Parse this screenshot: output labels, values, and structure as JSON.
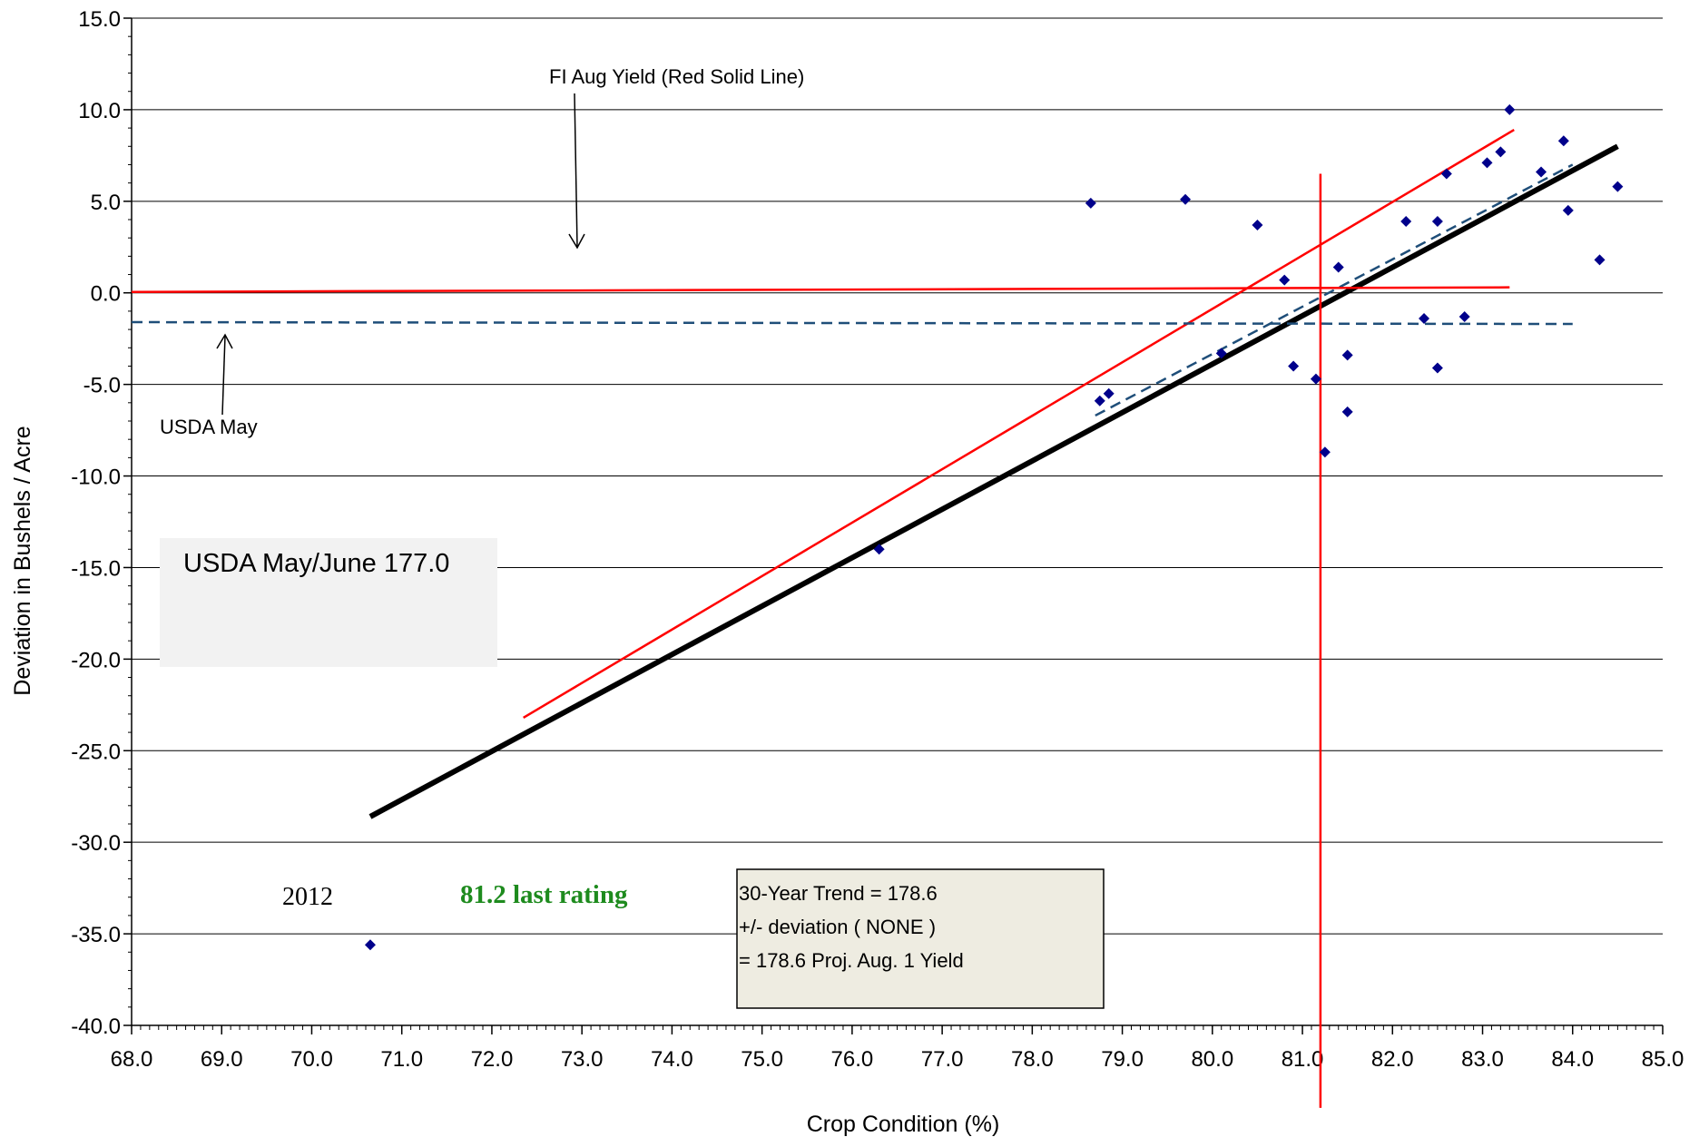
{
  "chart_data": {
    "type": "scatter",
    "xlabel": "Crop Condition (%)",
    "ylabel": "Deviation in Bushels / Acre",
    "xlim": [
      68.0,
      85.0
    ],
    "ylim": [
      -40.0,
      15.0
    ],
    "x_ticks": [
      "68.0",
      "69.0",
      "70.0",
      "71.0",
      "72.0",
      "73.0",
      "74.0",
      "75.0",
      "76.0",
      "77.0",
      "78.0",
      "79.0",
      "80.0",
      "81.0",
      "82.0",
      "83.0",
      "84.0",
      "85.0"
    ],
    "y_ticks": [
      "15.0",
      "10.0",
      "5.0",
      "0.0",
      "-5.0",
      "-10.0",
      "-15.0",
      "-20.0",
      "-25.0",
      "-30.0",
      "-35.0",
      "-40.0"
    ],
    "grid": "horizontal",
    "points": [
      {
        "x": 70.65,
        "y": -35.6
      },
      {
        "x": 76.3,
        "y": -14.0
      },
      {
        "x": 78.65,
        "y": 4.9
      },
      {
        "x": 78.75,
        "y": -5.9
      },
      {
        "x": 78.85,
        "y": -5.5
      },
      {
        "x": 79.7,
        "y": 5.1
      },
      {
        "x": 80.1,
        "y": -3.3
      },
      {
        "x": 80.5,
        "y": 3.7
      },
      {
        "x": 80.8,
        "y": 0.7
      },
      {
        "x": 80.9,
        "y": -4.0
      },
      {
        "x": 81.15,
        "y": -4.7
      },
      {
        "x": 81.25,
        "y": -8.7
      },
      {
        "x": 81.4,
        "y": 1.4
      },
      {
        "x": 81.5,
        "y": -3.4
      },
      {
        "x": 81.5,
        "y": -6.5
      },
      {
        "x": 82.15,
        "y": 3.9
      },
      {
        "x": 82.35,
        "y": -1.4
      },
      {
        "x": 82.5,
        "y": 3.9
      },
      {
        "x": 82.5,
        "y": -4.1
      },
      {
        "x": 82.6,
        "y": 6.5
      },
      {
        "x": 82.8,
        "y": -1.3
      },
      {
        "x": 83.05,
        "y": 7.1
      },
      {
        "x": 83.2,
        "y": 7.7
      },
      {
        "x": 83.3,
        "y": 10.0
      },
      {
        "x": 83.65,
        "y": 6.6
      },
      {
        "x": 83.9,
        "y": 8.3
      },
      {
        "x": 83.95,
        "y": 4.5
      },
      {
        "x": 84.3,
        "y": 1.8
      },
      {
        "x": 84.5,
        "y": 5.8
      }
    ],
    "lines": [
      {
        "color": "#000000",
        "style": "solid",
        "from": [
          70.65,
          -28.6
        ],
        "to": [
          84.5,
          8.0
        ]
      },
      {
        "color": "#ff0000",
        "style": "solid",
        "from": [
          72.35,
          -23.2
        ],
        "to": [
          83.35,
          8.9
        ]
      },
      {
        "color": "#1f4e79",
        "style": "dashed",
        "from": [
          78.7,
          -6.7
        ],
        "to": [
          84.0,
          7.0
        ]
      },
      {
        "color": "#ff0000",
        "style": "solid",
        "from": [
          68.0,
          0.05
        ],
        "to": [
          83.3,
          0.3
        ]
      },
      {
        "color": "#1f4e79",
        "style": "dashed",
        "from": [
          68.0,
          -1.6
        ],
        "to": [
          84.0,
          -1.7
        ]
      },
      {
        "color": "#ff0000",
        "style": "solid",
        "from": [
          81.2,
          6.5
        ],
        "to": [
          81.2,
          -44.5
        ]
      }
    ],
    "annotations": {
      "fi_aug": "FI Aug Yield (Red Solid Line)",
      "usda_may": "USDA May",
      "usda_box": "USDA May/June 177.0",
      "year_2012": "2012",
      "last_rating": "81.2 last rating",
      "trend_box": [
        "30-Year Trend = 178.6",
        "+/- deviation ( NONE )",
        "=  178.6 Proj. Aug. 1 Yield"
      ]
    }
  },
  "colors": {
    "points": "#00008b",
    "trend_line": "#000000",
    "red_line": "#ff0000",
    "dashed_line": "#1f4e79",
    "last_rating_text": "#1e8b1e",
    "usda_box_fill": "#f2f2f2",
    "trend_box_fill": "#eeece1"
  }
}
